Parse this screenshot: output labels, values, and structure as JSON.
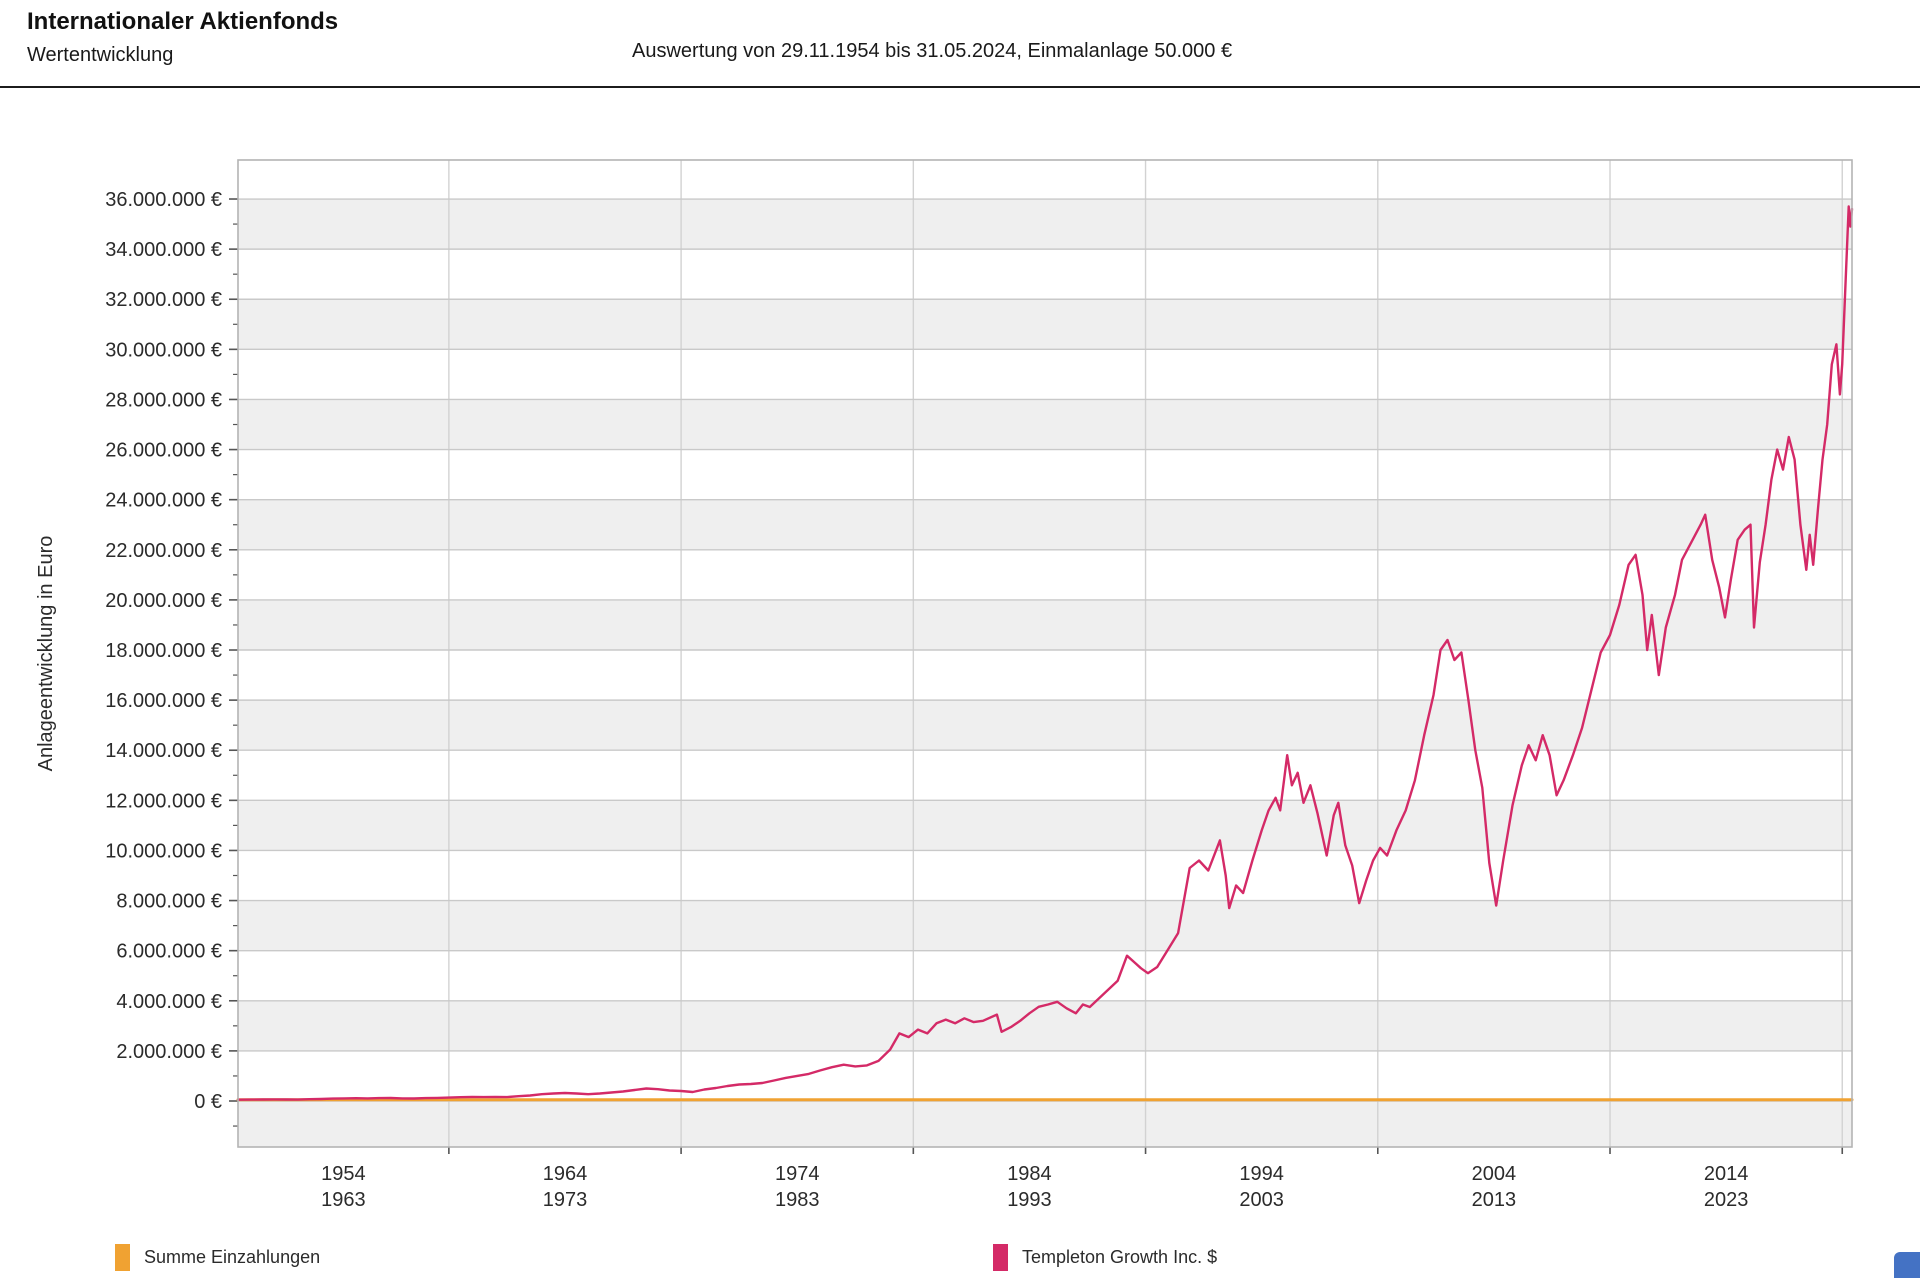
{
  "header": {
    "title": "Internationaler Aktienfonds",
    "subtitle": "Wertentwicklung",
    "evaluation": "Auswertung von 29.11.1954 bis 31.05.2024, Einmalanlage 50.000 €"
  },
  "chart_data": {
    "type": "line",
    "ylabel": "Anlageentwicklung in Euro",
    "xlabel": "",
    "values_unit": "million EUR",
    "x_range": [
      1954.92,
      2024.42
    ],
    "ylim": [
      -1840000,
      37560000
    ],
    "y_ticks": [
      0,
      2000000,
      4000000,
      6000000,
      8000000,
      10000000,
      12000000,
      14000000,
      16000000,
      18000000,
      20000000,
      22000000,
      24000000,
      26000000,
      28000000,
      30000000,
      32000000,
      34000000,
      36000000
    ],
    "y_tick_suffix": " €",
    "grid": true,
    "band_fill": "#efefef",
    "gridline_color": "#c9c9c9",
    "vgrid_color": "#d2d2d2",
    "border_color": "#b4b4b4",
    "tick_color": "#555555",
    "label_color": "#2b2b2b",
    "decade_boundaries": [
      1964,
      1974,
      1984,
      1994,
      2004,
      2014,
      2024
    ],
    "x_tick_bands": [
      [
        "1954",
        "1963"
      ],
      [
        "1964",
        "1973"
      ],
      [
        "1974",
        "1983"
      ],
      [
        "1984",
        "1993"
      ],
      [
        "1994",
        "2003"
      ],
      [
        "2004",
        "2013"
      ],
      [
        "2014",
        "2023"
      ]
    ],
    "legend_position": "bottom",
    "series": [
      {
        "name": "Summe Einzahlungen",
        "color": "#f0a232",
        "width": 3,
        "points": [
          [
            1954.92,
            0.05
          ],
          [
            2024.42,
            0.05
          ]
        ]
      },
      {
        "name": "Templeton Growth Inc. $",
        "color": "#d42a67",
        "width": 2.4,
        "points": [
          [
            1954.92,
            0.05
          ],
          [
            1955.5,
            0.055
          ],
          [
            1956,
            0.06
          ],
          [
            1956.5,
            0.065
          ],
          [
            1957,
            0.06
          ],
          [
            1957.5,
            0.055
          ],
          [
            1958,
            0.07
          ],
          [
            1958.5,
            0.08
          ],
          [
            1959,
            0.095
          ],
          [
            1959.5,
            0.105
          ],
          [
            1960,
            0.11
          ],
          [
            1960.5,
            0.105
          ],
          [
            1961,
            0.115
          ],
          [
            1961.5,
            0.12
          ],
          [
            1962,
            0.105
          ],
          [
            1962.5,
            0.1
          ],
          [
            1963,
            0.115
          ],
          [
            1963.5,
            0.125
          ],
          [
            1964,
            0.135
          ],
          [
            1964.5,
            0.15
          ],
          [
            1965,
            0.16
          ],
          [
            1965.5,
            0.155
          ],
          [
            1966,
            0.165
          ],
          [
            1966.5,
            0.155
          ],
          [
            1967,
            0.19
          ],
          [
            1967.5,
            0.22
          ],
          [
            1968,
            0.27
          ],
          [
            1968.5,
            0.3
          ],
          [
            1969,
            0.32
          ],
          [
            1969.5,
            0.3
          ],
          [
            1970,
            0.27
          ],
          [
            1970.5,
            0.3
          ],
          [
            1971,
            0.34
          ],
          [
            1971.5,
            0.38
          ],
          [
            1972,
            0.44
          ],
          [
            1972.5,
            0.5
          ],
          [
            1973,
            0.47
          ],
          [
            1973.5,
            0.42
          ],
          [
            1974,
            0.4
          ],
          [
            1974.5,
            0.36
          ],
          [
            1975,
            0.46
          ],
          [
            1975.5,
            0.52
          ],
          [
            1976,
            0.6
          ],
          [
            1976.5,
            0.66
          ],
          [
            1977,
            0.68
          ],
          [
            1977.5,
            0.72
          ],
          [
            1978,
            0.82
          ],
          [
            1978.5,
            0.92
          ],
          [
            1979,
            1.0
          ],
          [
            1979.5,
            1.08
          ],
          [
            1980,
            1.22
          ],
          [
            1980.5,
            1.35
          ],
          [
            1981,
            1.45
          ],
          [
            1981.5,
            1.38
          ],
          [
            1982,
            1.42
          ],
          [
            1982.5,
            1.6
          ],
          [
            1983,
            2.05
          ],
          [
            1983.4,
            2.7
          ],
          [
            1983.8,
            2.55
          ],
          [
            1984.2,
            2.85
          ],
          [
            1984.6,
            2.7
          ],
          [
            1985,
            3.1
          ],
          [
            1985.4,
            3.25
          ],
          [
            1985.8,
            3.1
          ],
          [
            1986.2,
            3.3
          ],
          [
            1986.6,
            3.15
          ],
          [
            1987,
            3.2
          ],
          [
            1987.6,
            3.45
          ],
          [
            1987.8,
            2.76
          ],
          [
            1988.2,
            2.95
          ],
          [
            1988.6,
            3.2
          ],
          [
            1989,
            3.5
          ],
          [
            1989.4,
            3.76
          ],
          [
            1989.8,
            3.85
          ],
          [
            1990.2,
            3.96
          ],
          [
            1990.6,
            3.7
          ],
          [
            1991,
            3.5
          ],
          [
            1991.3,
            3.85
          ],
          [
            1991.6,
            3.75
          ],
          [
            1992,
            4.1
          ],
          [
            1992.4,
            4.45
          ],
          [
            1992.8,
            4.8
          ],
          [
            1993.2,
            5.8
          ],
          [
            1993.5,
            5.55
          ],
          [
            1993.8,
            5.3
          ],
          [
            1994.1,
            5.1
          ],
          [
            1994.5,
            5.35
          ],
          [
            1995,
            6.1
          ],
          [
            1995.4,
            6.7
          ],
          [
            1995.9,
            9.3
          ],
          [
            1996.3,
            9.6
          ],
          [
            1996.7,
            9.2
          ],
          [
            1997.2,
            10.4
          ],
          [
            1997.45,
            9.0
          ],
          [
            1997.6,
            7.7
          ],
          [
            1997.9,
            8.6
          ],
          [
            1998.2,
            8.3
          ],
          [
            1998.6,
            9.6
          ],
          [
            1999,
            10.8
          ],
          [
            1999.3,
            11.6
          ],
          [
            1999.6,
            12.1
          ],
          [
            1999.8,
            11.6
          ],
          [
            2000.1,
            13.8
          ],
          [
            2000.3,
            12.6
          ],
          [
            2000.55,
            13.1
          ],
          [
            2000.8,
            11.9
          ],
          [
            2001.1,
            12.6
          ],
          [
            2001.4,
            11.5
          ],
          [
            2001.8,
            9.8
          ],
          [
            2002.1,
            11.4
          ],
          [
            2002.3,
            11.9
          ],
          [
            2002.6,
            10.2
          ],
          [
            2002.9,
            9.4
          ],
          [
            2003.2,
            7.9
          ],
          [
            2003.5,
            8.8
          ],
          [
            2003.8,
            9.6
          ],
          [
            2004.1,
            10.1
          ],
          [
            2004.4,
            9.8
          ],
          [
            2004.8,
            10.8
          ],
          [
            2005.2,
            11.6
          ],
          [
            2005.6,
            12.8
          ],
          [
            2006,
            14.6
          ],
          [
            2006.4,
            16.2
          ],
          [
            2006.7,
            18.0
          ],
          [
            2007,
            18.4
          ],
          [
            2007.3,
            17.6
          ],
          [
            2007.6,
            17.9
          ],
          [
            2007.9,
            16.0
          ],
          [
            2008.2,
            14.0
          ],
          [
            2008.5,
            12.5
          ],
          [
            2008.8,
            9.5
          ],
          [
            2009.1,
            7.8
          ],
          [
            2009.4,
            9.6
          ],
          [
            2009.8,
            11.8
          ],
          [
            2010.2,
            13.4
          ],
          [
            2010.5,
            14.2
          ],
          [
            2010.8,
            13.6
          ],
          [
            2011.1,
            14.6
          ],
          [
            2011.4,
            13.8
          ],
          [
            2011.7,
            12.2
          ],
          [
            2012,
            12.8
          ],
          [
            2012.4,
            13.8
          ],
          [
            2012.8,
            14.9
          ],
          [
            2013.2,
            16.4
          ],
          [
            2013.6,
            17.9
          ],
          [
            2014,
            18.6
          ],
          [
            2014.4,
            19.8
          ],
          [
            2014.8,
            21.4
          ],
          [
            2015.1,
            21.8
          ],
          [
            2015.4,
            20.2
          ],
          [
            2015.6,
            18.0
          ],
          [
            2015.8,
            19.4
          ],
          [
            2016.1,
            17.0
          ],
          [
            2016.4,
            18.9
          ],
          [
            2016.8,
            20.2
          ],
          [
            2017.1,
            21.6
          ],
          [
            2017.5,
            22.3
          ],
          [
            2017.9,
            23.0
          ],
          [
            2018.1,
            23.4
          ],
          [
            2018.4,
            21.6
          ],
          [
            2018.7,
            20.5
          ],
          [
            2018.95,
            19.3
          ],
          [
            2019.2,
            20.8
          ],
          [
            2019.5,
            22.4
          ],
          [
            2019.8,
            22.8
          ],
          [
            2020.05,
            23.0
          ],
          [
            2020.2,
            18.9
          ],
          [
            2020.45,
            21.5
          ],
          [
            2020.7,
            23.0
          ],
          [
            2020.95,
            24.8
          ],
          [
            2021.2,
            26.0
          ],
          [
            2021.45,
            25.2
          ],
          [
            2021.7,
            26.5
          ],
          [
            2021.95,
            25.6
          ],
          [
            2022.2,
            23.0
          ],
          [
            2022.45,
            21.2
          ],
          [
            2022.6,
            22.6
          ],
          [
            2022.75,
            21.4
          ],
          [
            2022.95,
            23.6
          ],
          [
            2023.15,
            25.6
          ],
          [
            2023.35,
            27.0
          ],
          [
            2023.55,
            29.4
          ],
          [
            2023.75,
            30.2
          ],
          [
            2023.9,
            28.2
          ],
          [
            2024.0,
            29.4
          ],
          [
            2024.15,
            32.8
          ],
          [
            2024.28,
            35.7
          ],
          [
            2024.35,
            34.9
          ],
          [
            2024.42,
            35.6
          ]
        ]
      }
    ]
  },
  "legend": {
    "items": [
      {
        "label": "Summe Einzahlungen",
        "color": "#f0a232"
      },
      {
        "label": "Templeton Growth Inc. $",
        "color": "#d42a67"
      }
    ]
  },
  "misc": {
    "corner_button_color": "#4472c4"
  }
}
